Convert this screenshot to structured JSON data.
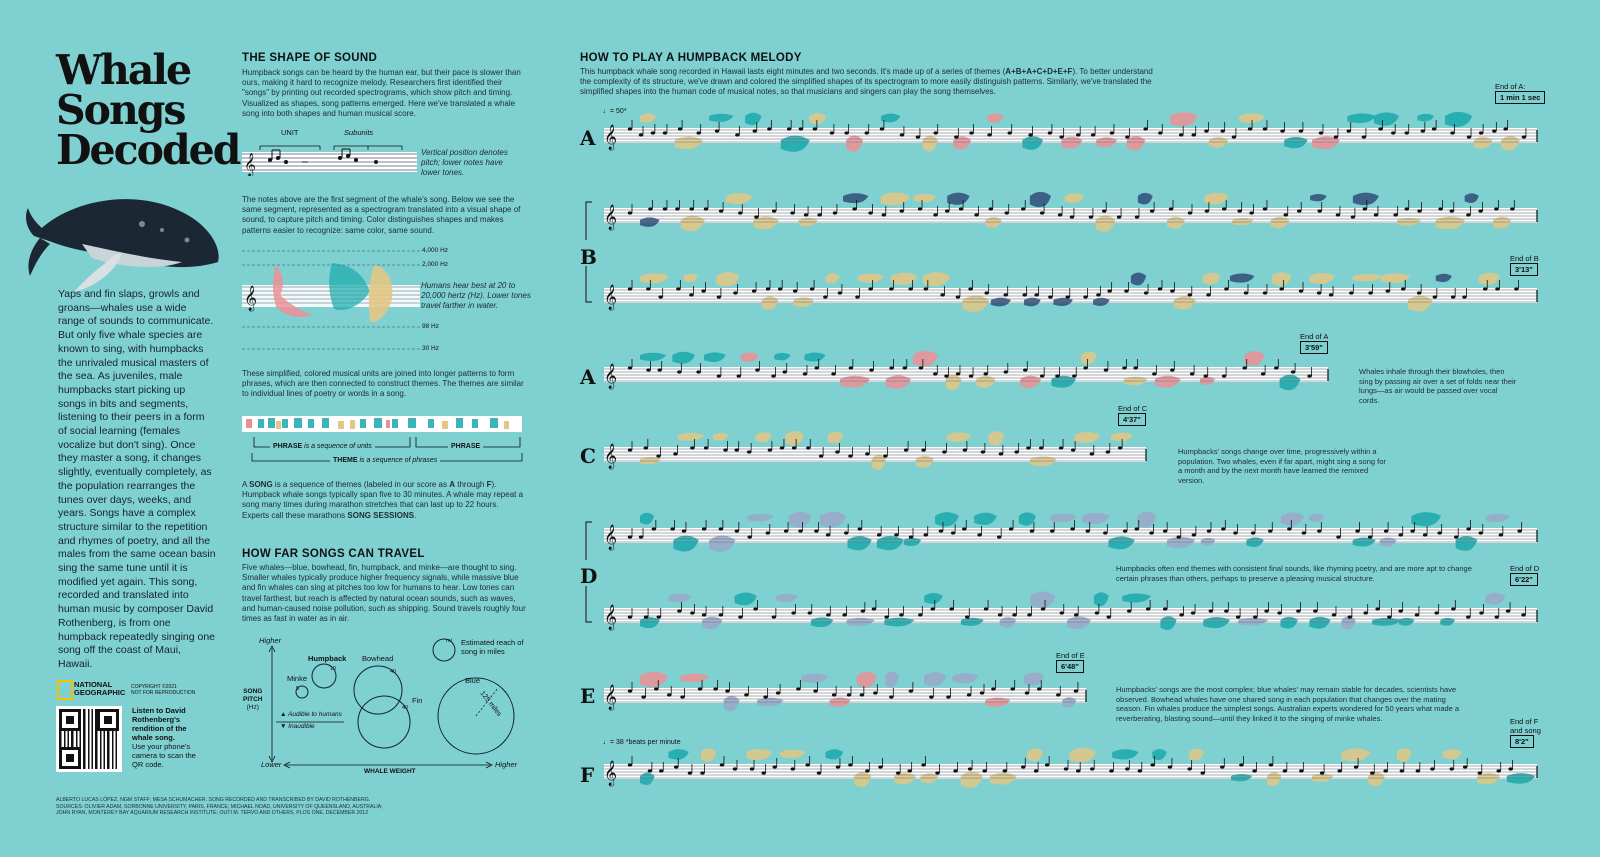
{
  "title_lines": [
    "Whale",
    "Songs",
    "Decoded"
  ],
  "intro": "Yaps and fin slaps, growls and groans—whales use a wide range of sounds to communicate. But only five whale species are known to sing, with humpbacks the unrivaled musical masters of the sea. As juveniles, male humpbacks start picking up songs in bits and segments, listening to their peers in a form of social learning (females vocalize but don't sing). Once they master a song, it changes slightly, eventually completely, as the population rearranges the tunes over days, weeks, and years. Songs have a complex structure similar to the repetition and rhymes of poetry, and all the males from the same ocean basin sing the same tune until it is modified yet again. This song, recorded and translated into human music by composer David Rothenberg, is from one humpback repeatedly singing one song off the coast of Maui, Hawaii.",
  "logo": {
    "line1": "NATIONAL",
    "line2": "GEOGRAPHIC",
    "copyright1": "COPYRIGHT ©2021",
    "copyright2": "NOT FOR REPRODUCTION"
  },
  "qr_text_bold": "Listen to David Rothenberg's rendition of the whale song.",
  "qr_text": "Use your phone's camera to scan the QR code.",
  "credits1": "ALBERTO LUCAS LÓPEZ, NGM STAFF; MESA SCHUMACHER. SONG RECORDED AND TRANSCRIBED BY DAVID ROTHENBERG.",
  "credits2": "SOURCES: OLIVIER ADAM, SORBONNE UNIVERSITY, PARIS, FRANCE; MICHAEL NOAD, UNIVERSITY OF QUEENSLAND, AUSTRALIA;",
  "credits3": "JOHN RYAN, MONTEREY BAY AQUARIUM RESEARCH INSTITUTE; OUTI M. TERVO AND OTHERS, PLOS ONE, DECEMBER 2012",
  "shape": {
    "heading": "THE SHAPE OF SOUND",
    "p1": "Humpback songs can be heard by the human ear, but their pace is slower than ours, making it hard to recognize melody. Researchers first identified their \"songs\" by printing out recorded spectrograms, which show pitch and timing. Visualized as shapes, song patterns emerged. Here we've translated a whale song into both shapes and human musical score.",
    "unit_label": "UNIT",
    "subunits_label": "Subunits",
    "vertical_note": "Vertical position denotes pitch; lower notes have lower tones.",
    "p2": "The notes above are the first segment of the whale's song. Below we see the same segment, represented as a spectrogram translated into a visual shape of sound, to capture pitch and timing. Color distinguishes shapes and makes patterns easier to recognize: same color, same sound.",
    "hz": [
      "4,000 Hz",
      "2,000 Hz",
      "98 Hz",
      "30 Hz"
    ],
    "humans_note": "Humans hear best at 20 to 20,000 hertz (Hz). Lower tones travel farther in water.",
    "p3": "These simplified, colored musical units are joined into longer patterns to form phrases, which are then connected to construct themes. The themes are similar to individual lines of poetry or words in a song.",
    "phrase_label": "PHRASE",
    "phrase_def": "is a sequence of units",
    "phrase_label2": "PHRASE",
    "theme_label": "THEME",
    "theme_def": "is a sequence of phrases",
    "p4_a": "A ",
    "p4_song": "SONG",
    "p4_b": " is a sequence of themes (labeled in our score as ",
    "p4_A": "A",
    "p4_c": " through ",
    "p4_F": "F",
    "p4_d": "). Humpback whale songs typically span five to 30 minutes. A whale may repeat a song many times during marathon stretches that can last up to 22 hours. Experts call these marathons ",
    "p4_ss": "SONG SESSIONS",
    "p4_e": "."
  },
  "travel": {
    "heading": "HOW FAR SONGS CAN TRAVEL",
    "p": "Five whales—blue, bowhead, fin, humpback, and minke—are thought to sing. Smaller whales typically produce higher frequency signals, while massive blue and fin whales can sing at pitches too low for humans to hear. Low tones can travel farthest, but reach is affected by natural ocean sounds, such as waves, and human-caused noise pollution, such as shipping. Sound travels roughly four times as fast in water as in air.",
    "higher_y": "Higher",
    "lower": "Lower",
    "higher_x": "Higher",
    "ylabel1": "SONG",
    "ylabel2": "PITCH",
    "ylabel3": "(Hz)",
    "xlabel": "WHALE WEIGHT",
    "audible": "Audible to humans",
    "inaudible": "Inaudible",
    "legend_mi": "mi",
    "legend_text": "Estimated reach of song in miles",
    "whales": [
      {
        "name": "Minke",
        "miles": "5"
      },
      {
        "name": "Humpback",
        "miles": "10"
      },
      {
        "name": "Bowhead",
        "miles": "40"
      },
      {
        "name": "Fin",
        "miles": "40"
      },
      {
        "name": "Blue",
        "miles": "125 miles"
      }
    ]
  },
  "play": {
    "heading": "HOW TO PLAY A HUMPBACK MELODY",
    "p_a": "This humpback whale song recorded in Hawaii lasts eight minutes and two seconds. It's made up of a series of themes (",
    "p_seq": "A+B+A+C+D+E+F",
    "p_b": "). To better understand the complexity of its structure, we've drawn and colored the simplified shapes of its spectrogram to more easily distinguish patterns. Similarly, we've translated the simplified shapes into the human code of musical notes, so that musicians and singers can play the song themselves.",
    "tempo1": "♩= 50*",
    "tempo2": "♩= 38 *beats per minute",
    "themes": [
      "A",
      "B",
      "A",
      "C",
      "D",
      "E",
      "F"
    ],
    "ends": [
      {
        "label": "End of A:",
        "time": "1 min 1 sec"
      },
      {
        "label": "End of B",
        "time": "3'13\""
      },
      {
        "label": "End of A",
        "time": "3'59\""
      },
      {
        "label": "End of C",
        "time": "4'37\""
      },
      {
        "label": "End of D",
        "time": "6'22\""
      },
      {
        "label": "End of E",
        "time": "6'48\""
      },
      {
        "label": "End of F",
        "label2": "and song",
        "time": "8'2\""
      }
    ],
    "note_breath": "Whales inhale through their blowholes, then sing by passing air over a set of folds near their lungs—as air would be passed over vocal cords.",
    "note_change": "Humpbacks' songs change over time, progressively within a population. Two whales, even if far apart, might sing a song for a month and by the next month have learned the remixed version.",
    "note_rhyme": "Humpbacks often end themes with consistent final sounds, like rhyming poetry, and are more apt to change certain phrases than others, perhaps to preserve a pleasing musical structure.",
    "note_complex": "Humpbacks' songs are the most complex; blue whales' may remain stable for decades, scientists have observed. Bowhead whales have one shared song in each population that changes over the mating season. Fin whales produce the simplest songs. Australian experts wondered for 50 years what made a reverberating, blasting sound—until they linked it to the singing of minke whales."
  },
  "colors": {
    "bg": "#7fd0d1",
    "teal": "#1aa9ad",
    "sand": "#e2c785",
    "pink": "#ec8f95",
    "slate": "#9aa8c8",
    "navy": "#2f4e7a",
    "ink": "#111111"
  }
}
